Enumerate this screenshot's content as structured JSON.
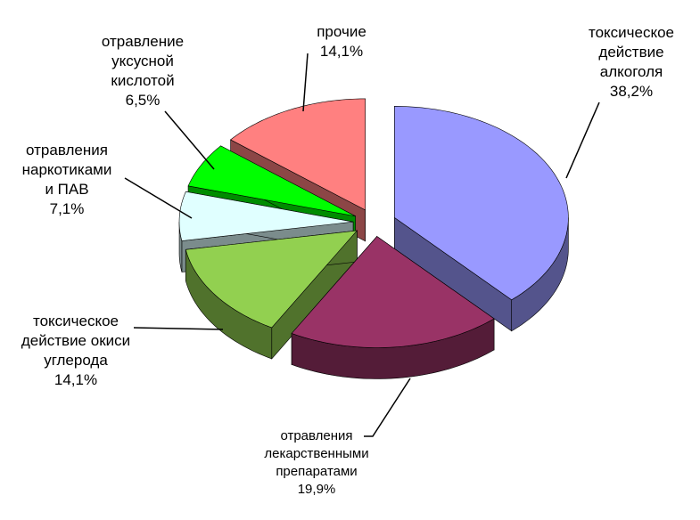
{
  "chart_data": {
    "type": "pie3d",
    "categories": [
      "токсическое\nдействие\nалкоголя",
      "отравления\nлекарственными\nпрепаратами",
      "токсическое\nдействие окиси\nуглерода",
      "отравления\nнаркотиками\nи ПАВ",
      "отравление\nуксусной\nкислотой",
      "прочие"
    ],
    "values": [
      38.2,
      19.9,
      14.1,
      7.1,
      6.5,
      14.1
    ],
    "value_labels": [
      "38,2%",
      "19,9%",
      "14,1%",
      "7,1%",
      "6,5%",
      "14,1%"
    ],
    "colors": [
      "#9999ff",
      "#993366",
      "#92d050",
      "#e0ffff",
      "#00ff00",
      "#ff8080"
    ]
  }
}
